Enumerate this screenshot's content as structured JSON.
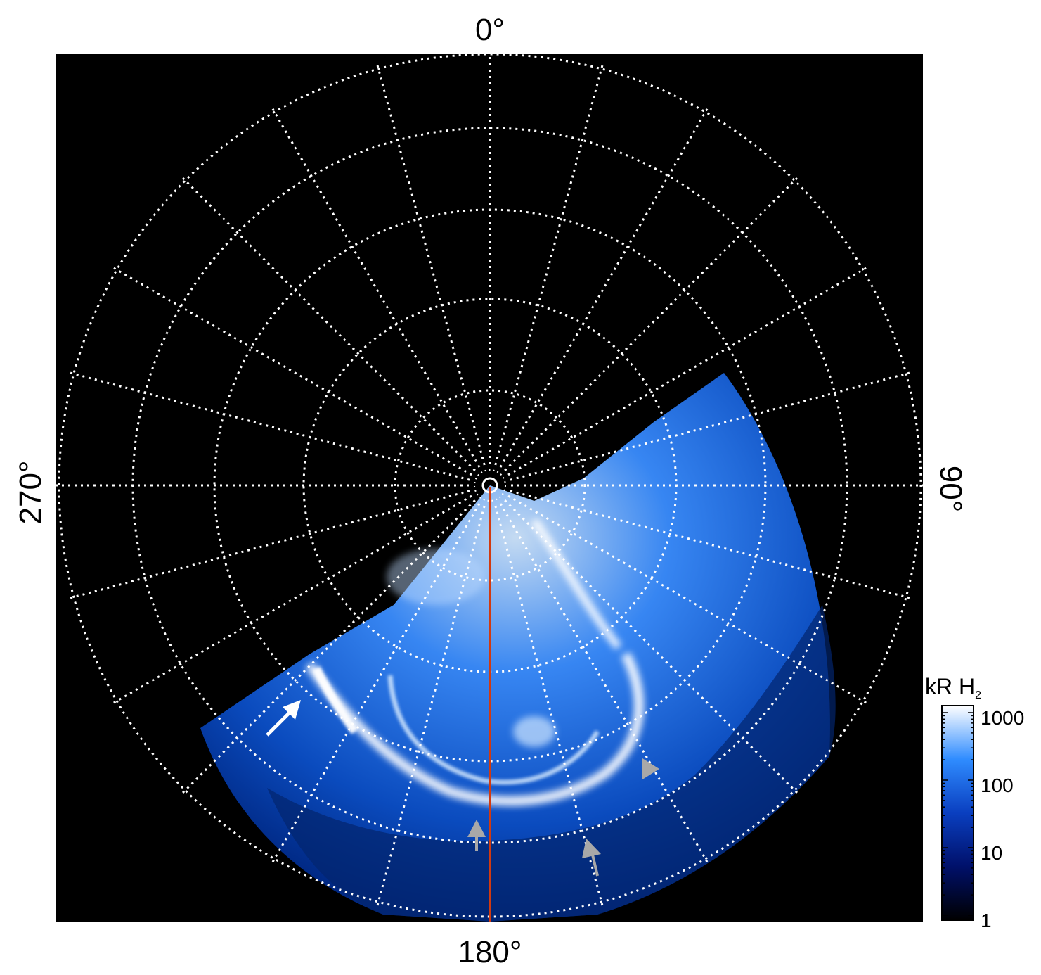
{
  "figure": {
    "longitude_labels": {
      "top": "0°",
      "right": "90°",
      "bottom": "180°",
      "left": "270°"
    },
    "colorbar": {
      "unit": "kR H",
      "unit_subscript": "2",
      "ticks": [
        "1000",
        "100",
        "10",
        "1"
      ],
      "scale": "log"
    },
    "colors": {
      "background": "#000000",
      "grid": "#ffffff",
      "aurora_bright": "#ffffff",
      "aurora_mid": "#3a8dff",
      "aurora_dark": "#001a66",
      "meridian_line": "#d23a10",
      "arrow_white": "#ffffff",
      "arrow_gray": "#a8a8a8"
    },
    "annotations": [
      "white-arrow",
      "gray-arrow",
      "gray-arrow",
      "gray-arrowhead"
    ]
  }
}
